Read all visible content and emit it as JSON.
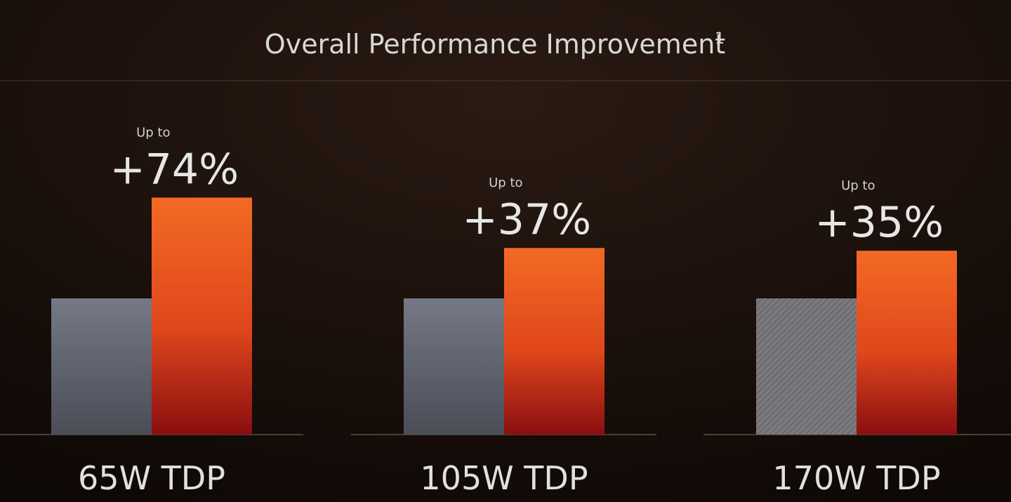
{
  "chart_data": {
    "type": "bar",
    "title": "Overall Performance Improvement",
    "title_footnote": "1",
    "categories": [
      "65W TDP",
      "105W TDP",
      "170W TDP"
    ],
    "annotation": "Up to",
    "series": [
      {
        "color": "#6f7480",
        "values": [
          100,
          100,
          100
        ]
      },
      {
        "color": "#f26522",
        "values": [
          74,
          37,
          35
        ],
        "value_labels": [
          "+74%",
          "+37%",
          "+35%"
        ]
      }
    ]
  }
}
